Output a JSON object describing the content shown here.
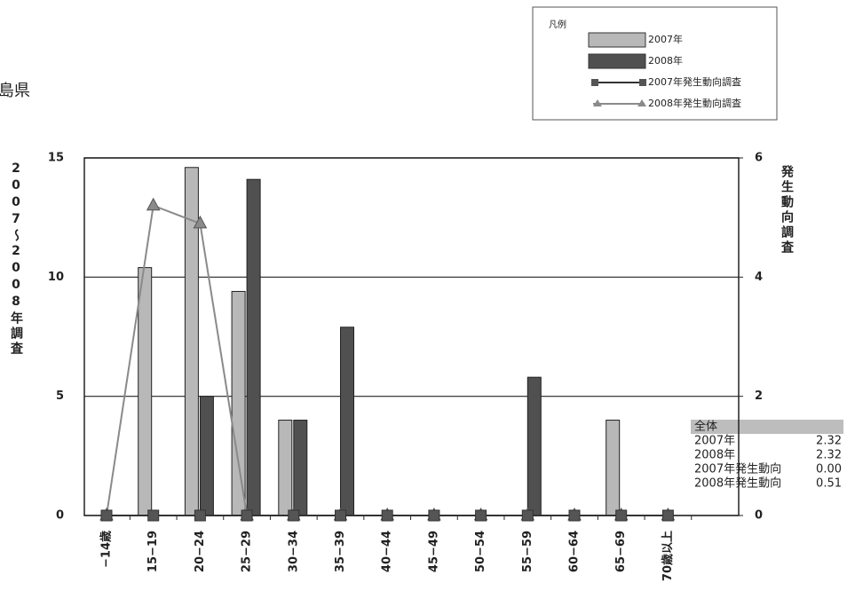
{
  "page_label": "島県",
  "chart_data": {
    "type": "bar",
    "y_label": "2007〜2008年調査",
    "y2_label": "発生動向調査",
    "legend_title": "凡例",
    "categories": [
      "−14歳",
      "15−19",
      "20−24",
      "25−29",
      "30−34",
      "35−39",
      "40−44",
      "45−49",
      "50−54",
      "55−59",
      "60−64",
      "65−69",
      "70歳以上"
    ],
    "series": [
      {
        "name": "2007年",
        "color": "#b8b8b8",
        "values": [
          0,
          10.4,
          14.6,
          9.4,
          4,
          0,
          0,
          0,
          0,
          0,
          0,
          4,
          0
        ]
      },
      {
        "name": "2008年",
        "color": "#505050",
        "values": [
          0,
          0,
          5,
          14.1,
          4,
          7.9,
          0,
          0,
          0,
          5.8,
          0,
          0,
          0
        ]
      },
      {
        "name": "2007年発生動向調査",
        "type": "line",
        "axis": "y2",
        "color": "#333333",
        "marker": "square",
        "values": [
          0,
          0,
          0,
          0,
          0,
          0,
          0,
          0,
          0,
          0,
          0,
          0,
          0
        ]
      },
      {
        "name": "2008年発生動向調査",
        "type": "line",
        "axis": "y2",
        "color": "#8a8a8a",
        "marker": "triangle",
        "values": [
          0,
          5.2,
          4.9,
          0,
          0,
          0,
          0,
          0,
          0,
          0,
          0,
          0,
          0
        ]
      }
    ],
    "ylim": [
      0,
      15
    ],
    "yticks": [
      0,
      5,
      10,
      15
    ],
    "y2lim": [
      0,
      6
    ],
    "y2ticks": [
      0,
      2,
      4,
      6
    ],
    "grid": true
  },
  "summary_table": {
    "header": "全体",
    "rows": [
      [
        "2007年",
        "2.32"
      ],
      [
        "2008年",
        "2.32"
      ],
      [
        "2007年発生動向",
        "0.00"
      ],
      [
        "2008年発生動向",
        "0.51"
      ]
    ]
  }
}
